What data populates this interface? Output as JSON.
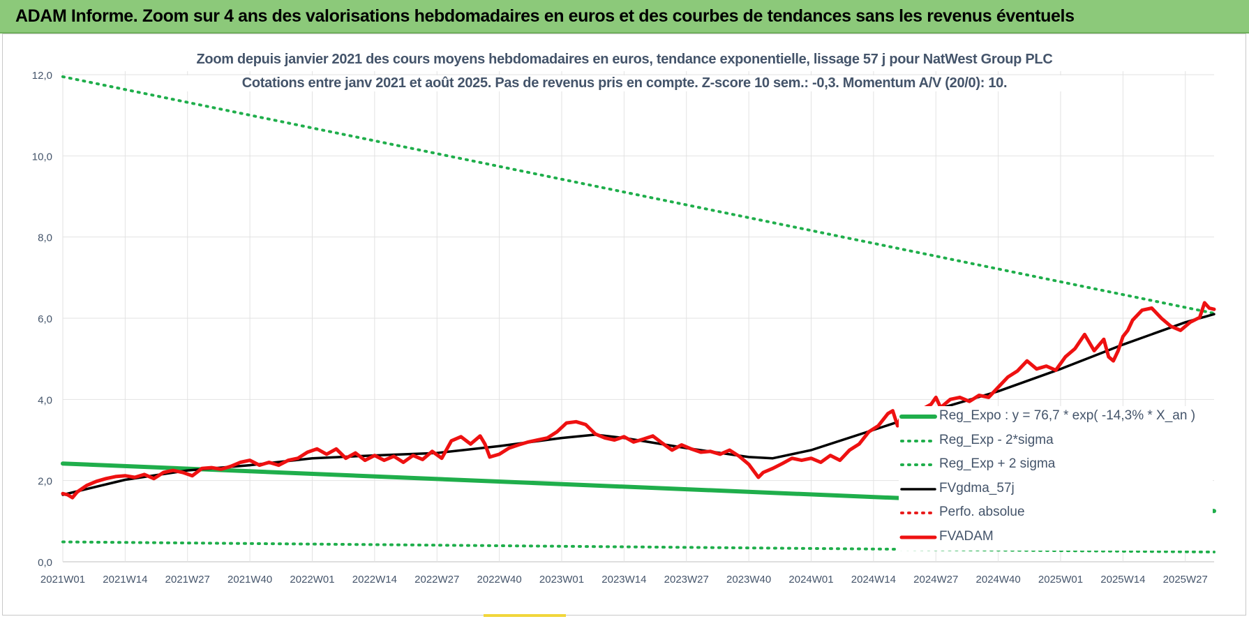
{
  "banner": {
    "title": "ADAM Informe. Zoom sur 4 ans des valorisations hebdomadaires en euros et des courbes de tendances sans les revenus éventuels"
  },
  "chart_data": {
    "type": "line",
    "title": "Zoom depuis janvier 2021 des cours moyens hebdomadaires en euros, tendance exponentielle, lissage 57 j pour NatWest Group PLC",
    "subtitle": "Cotations entre janv 2021 et août 2025. Pas de revenus pris en compte. Z-score 10 sem.: -0,3. Momentum A/V (20/0): 10.",
    "ylim": [
      0,
      12
    ],
    "grid": true,
    "y_ticks": [
      "0,0",
      "2,0",
      "4,0",
      "6,0",
      "8,0",
      "10,0",
      "12,0"
    ],
    "x_ticks": [
      "2021W01",
      "2021W14",
      "2021W27",
      "2021W40",
      "2022W01",
      "2022W14",
      "2022W27",
      "2022W40",
      "2023W01",
      "2023W14",
      "2023W27",
      "2023W40",
      "2024W01",
      "2024W14",
      "2024W27",
      "2024W40",
      "2025W01",
      "2025W14",
      "2025W27"
    ],
    "x_range": [
      "2021W01",
      "2025W33"
    ],
    "legend_placement": "bottom-right",
    "series": [
      {
        "name": "Reg_Expo : y = 76,7 * exp( -14,3% *  X_an )",
        "style": "solid-thick",
        "color": "#1fae4b",
        "x": [
          "2021W01",
          "2025W33"
        ],
        "values": [
          2.42,
          1.25
        ]
      },
      {
        "name": "Reg_Exp - 2*sigma",
        "style": "dotted",
        "color": "#1fae4b",
        "x": [
          "2021W01",
          "2025W33"
        ],
        "values": [
          0.49,
          0.24
        ]
      },
      {
        "name": "Reg_Exp + 2 sigma",
        "style": "dotted",
        "color": "#1fae4b",
        "x": [
          "2021W01",
          "2025W33"
        ],
        "values": [
          11.95,
          6.12
        ]
      },
      {
        "name": "FVgdma_57j",
        "style": "solid",
        "color": "#000000",
        "x": [
          "2021W01",
          "2021W14",
          "2021W27",
          "2021W40",
          "2022W01",
          "2022W14",
          "2022W27",
          "2022W40",
          "2023W01",
          "2023W08",
          "2023W14",
          "2023W27",
          "2023W40",
          "2023W45",
          "2024W01",
          "2024W14",
          "2024W27",
          "2024W40",
          "2025W01",
          "2025W14",
          "2025W27",
          "2025W33"
        ],
        "values": [
          1.65,
          2.02,
          2.25,
          2.38,
          2.55,
          2.62,
          2.68,
          2.85,
          3.05,
          3.13,
          3.05,
          2.8,
          2.58,
          2.55,
          2.75,
          3.25,
          3.75,
          4.2,
          4.75,
          5.35,
          5.9,
          6.1
        ]
      },
      {
        "name": "Perfo. absolue",
        "style": "dotted",
        "color": "#e81c1c",
        "x": [],
        "values": []
      },
      {
        "name": "FVADAM",
        "style": "solid-thick",
        "color": "#ee1111",
        "x": [
          "2021W01",
          "2021W02",
          "2021W03",
          "2021W04",
          "2021W06",
          "2021W08",
          "2021W10",
          "2021W12",
          "2021W14",
          "2021W16",
          "2021W18",
          "2021W20",
          "2021W22",
          "2021W24",
          "2021W26",
          "2021W28",
          "2021W30",
          "2021W32",
          "2021W34",
          "2021W36",
          "2021W38",
          "2021W40",
          "2021W42",
          "2021W44",
          "2021W46",
          "2021W48",
          "2021W50",
          "2021W52",
          "2022W02",
          "2022W04",
          "2022W06",
          "2022W08",
          "2022W10",
          "2022W12",
          "2022W14",
          "2022W16",
          "2022W18",
          "2022W20",
          "2022W22",
          "2022W24",
          "2022W26",
          "2022W28",
          "2022W30",
          "2022W32",
          "2022W34",
          "2022W36",
          "2022W37",
          "2022W38",
          "2022W40",
          "2022W42",
          "2022W44",
          "2022W46",
          "2022W48",
          "2022W50",
          "2022W52",
          "2023W02",
          "2023W04",
          "2023W06",
          "2023W08",
          "2023W10",
          "2023W12",
          "2023W14",
          "2023W16",
          "2023W18",
          "2023W20",
          "2023W22",
          "2023W24",
          "2023W26",
          "2023W28",
          "2023W30",
          "2023W32",
          "2023W34",
          "2023W36",
          "2023W38",
          "2023W40",
          "2023W42",
          "2023W43",
          "2023W45",
          "2023W47",
          "2023W49",
          "2023W51",
          "2024W01",
          "2024W03",
          "2024W05",
          "2024W07",
          "2024W09",
          "2024W11",
          "2024W13",
          "2024W15",
          "2024W17",
          "2024W18",
          "2024W19",
          "2024W20",
          "2024W22",
          "2024W24",
          "2024W26",
          "2024W27",
          "2024W28",
          "2024W30",
          "2024W32",
          "2024W34",
          "2024W36",
          "2024W38",
          "2024W40",
          "2024W42",
          "2024W44",
          "2024W46",
          "2024W48",
          "2024W50",
          "2024W52",
          "2025W02",
          "2025W04",
          "2025W06",
          "2025W08",
          "2025W10",
          "2025W11",
          "2025W12",
          "2025W13",
          "2025W14",
          "2025W15",
          "2025W16",
          "2025W18",
          "2025W20",
          "2025W22",
          "2025W24",
          "2025W26",
          "2025W28",
          "2025W30",
          "2025W31",
          "2025W32",
          "2025W33"
        ],
        "values": [
          1.68,
          1.65,
          1.58,
          1.72,
          1.88,
          1.98,
          2.05,
          2.1,
          2.12,
          2.08,
          2.15,
          2.05,
          2.2,
          2.25,
          2.2,
          2.12,
          2.3,
          2.32,
          2.28,
          2.35,
          2.45,
          2.5,
          2.38,
          2.45,
          2.38,
          2.5,
          2.55,
          2.7,
          2.78,
          2.65,
          2.78,
          2.55,
          2.68,
          2.5,
          2.62,
          2.5,
          2.6,
          2.45,
          2.62,
          2.52,
          2.72,
          2.55,
          2.98,
          3.08,
          2.9,
          3.1,
          2.9,
          2.58,
          2.65,
          2.8,
          2.88,
          2.95,
          3.0,
          3.05,
          3.2,
          3.42,
          3.45,
          3.38,
          3.15,
          3.05,
          3.0,
          3.08,
          2.95,
          3.02,
          3.1,
          2.92,
          2.75,
          2.88,
          2.78,
          2.7,
          2.72,
          2.65,
          2.75,
          2.6,
          2.4,
          2.08,
          2.2,
          2.3,
          2.42,
          2.55,
          2.5,
          2.55,
          2.45,
          2.62,
          2.5,
          2.75,
          2.9,
          3.2,
          3.35,
          3.65,
          3.72,
          3.35,
          3.65,
          3.68,
          3.75,
          3.88,
          4.05,
          3.8,
          4.0,
          4.05,
          3.95,
          4.1,
          4.05,
          4.3,
          4.55,
          4.7,
          4.95,
          4.75,
          4.82,
          4.72,
          5.05,
          5.25,
          5.6,
          5.2,
          5.48,
          5.05,
          4.95,
          5.2,
          5.55,
          5.7,
          5.95,
          6.2,
          6.25,
          6.0,
          5.8,
          5.7,
          5.9,
          6.02,
          6.38,
          6.25,
          6.22
        ]
      }
    ]
  }
}
